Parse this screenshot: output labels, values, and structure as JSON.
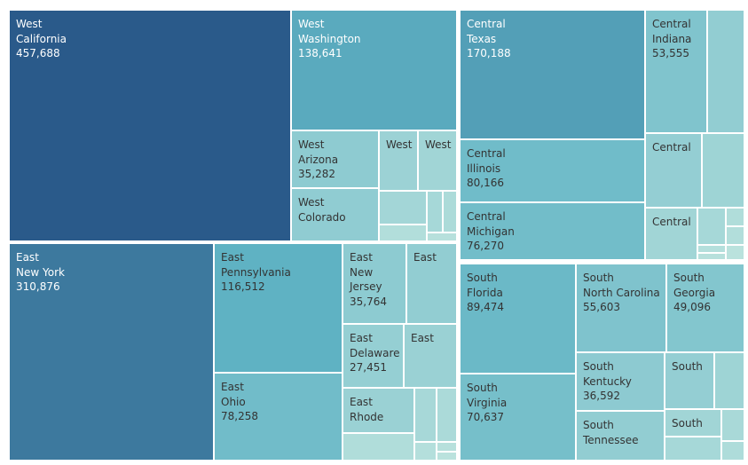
{
  "chart_data": {
    "type": "treemap",
    "color_scale": {
      "min_color": "#c8e9e1",
      "mid_color": "#5fb3c4",
      "max_color": "#2a5a8a",
      "min": 0,
      "max": 457688
    },
    "groups": [
      {
        "region": "West",
        "items": [
          {
            "id": "west-california",
            "l1": "West",
            "l2": "California",
            "value": 457688,
            "value_text": "457,688"
          },
          {
            "id": "west-washington",
            "l1": "West",
            "l2": "Washington",
            "value": 138641,
            "value_text": "138,641"
          },
          {
            "id": "west-arizona",
            "l1": "West",
            "l2": "Arizona",
            "value": 35282,
            "value_text": "35,282"
          },
          {
            "id": "west-colorado",
            "l1": "West",
            "l2": "Colorado",
            "value": 32110
          },
          {
            "id": "west-a",
            "l1": "West",
            "value": 20000
          },
          {
            "id": "west-b",
            "l1": "West",
            "value": 16000
          },
          {
            "id": "west-c",
            "value": 14000
          },
          {
            "id": "west-d",
            "value": 12000
          },
          {
            "id": "west-e",
            "value": 8000
          },
          {
            "id": "west-f",
            "value": 5000
          },
          {
            "id": "west-g",
            "value": 3000
          }
        ]
      },
      {
        "region": "East",
        "items": [
          {
            "id": "east-new-york",
            "l1": "East",
            "l2": "New York",
            "value": 310876,
            "value_text": "310,876"
          },
          {
            "id": "east-pennsylvania",
            "l1": "East",
            "l2": "Pennsylvania",
            "value": 116512,
            "value_text": "116,512"
          },
          {
            "id": "east-ohio",
            "l1": "East",
            "l2": "Ohio",
            "value": 78258,
            "value_text": "78,258"
          },
          {
            "id": "east-new-jersey",
            "l1": "East",
            "l2": "New Jersey",
            "value": 35764,
            "value_text": "35,764"
          },
          {
            "id": "east-a",
            "l1": "East",
            "value": 30000
          },
          {
            "id": "east-delaware",
            "l1": "East",
            "l2": "Delaware",
            "value": 27451,
            "value_text": "27,451"
          },
          {
            "id": "east-b",
            "l1": "East",
            "value": 22000
          },
          {
            "id": "east-rhode",
            "l1": "East",
            "l2": "Rhode",
            "value": 22000
          },
          {
            "id": "east-c",
            "value": 11000
          },
          {
            "id": "east-d",
            "value": 9000
          },
          {
            "id": "east-e",
            "value": 6000
          },
          {
            "id": "east-f",
            "value": 4000
          },
          {
            "id": "east-g",
            "value": 3000
          },
          {
            "id": "east-h",
            "value": 2000
          }
        ]
      },
      {
        "region": "Central",
        "items": [
          {
            "id": "central-texas",
            "l1": "Central",
            "l2": "Texas",
            "value": 170188,
            "value_text": "170,188"
          },
          {
            "id": "central-illinois",
            "l1": "Central",
            "l2": "Illinois",
            "value": 80166,
            "value_text": "80,166"
          },
          {
            "id": "central-michigan",
            "l1": "Central",
            "l2": "Michigan",
            "value": 76270,
            "value_text": "76,270"
          },
          {
            "id": "central-indiana",
            "l1": "Central",
            "l2": "Indiana",
            "value": 53555,
            "value_text": "53,555"
          },
          {
            "id": "central-a",
            "value": 30000
          },
          {
            "id": "central-b",
            "l1": "Central",
            "value": 28000
          },
          {
            "id": "central-c",
            "value": 18000
          },
          {
            "id": "central-d",
            "l1": "Central",
            "value": 16000
          },
          {
            "id": "central-e",
            "value": 12000
          },
          {
            "id": "central-f",
            "value": 6000
          },
          {
            "id": "central-g",
            "value": 5000
          },
          {
            "id": "central-h",
            "value": 4000
          },
          {
            "id": "central-i",
            "value": 3000
          },
          {
            "id": "central-j",
            "value": 2000
          }
        ]
      },
      {
        "region": "South",
        "items": [
          {
            "id": "south-florida",
            "l1": "South",
            "l2": "Florida",
            "value": 89474,
            "value_text": "89,474"
          },
          {
            "id": "south-virginia",
            "l1": "South",
            "l2": "Virginia",
            "value": 70637,
            "value_text": "70,637"
          },
          {
            "id": "south-north-carolina",
            "l1": "South",
            "l2": "North Carolina",
            "value": 55603,
            "value_text": "55,603"
          },
          {
            "id": "south-georgia",
            "l1": "South",
            "l2": "Georgia",
            "value": 49096,
            "value_text": "49,096"
          },
          {
            "id": "south-kentucky",
            "l1": "South",
            "l2": "Kentucky",
            "value": 36592,
            "value_text": "36,592"
          },
          {
            "id": "south-tennessee",
            "l1": "South",
            "l2": "Tennessee",
            "value": 30662
          },
          {
            "id": "south-a",
            "l1": "South",
            "value": 28000
          },
          {
            "id": "south-b",
            "value": 18000
          },
          {
            "id": "south-c",
            "l1": "South",
            "value": 16000
          },
          {
            "id": "south-d",
            "value": 12000
          },
          {
            "id": "south-e",
            "value": 10000
          },
          {
            "id": "south-f",
            "value": 7000
          }
        ]
      }
    ]
  }
}
